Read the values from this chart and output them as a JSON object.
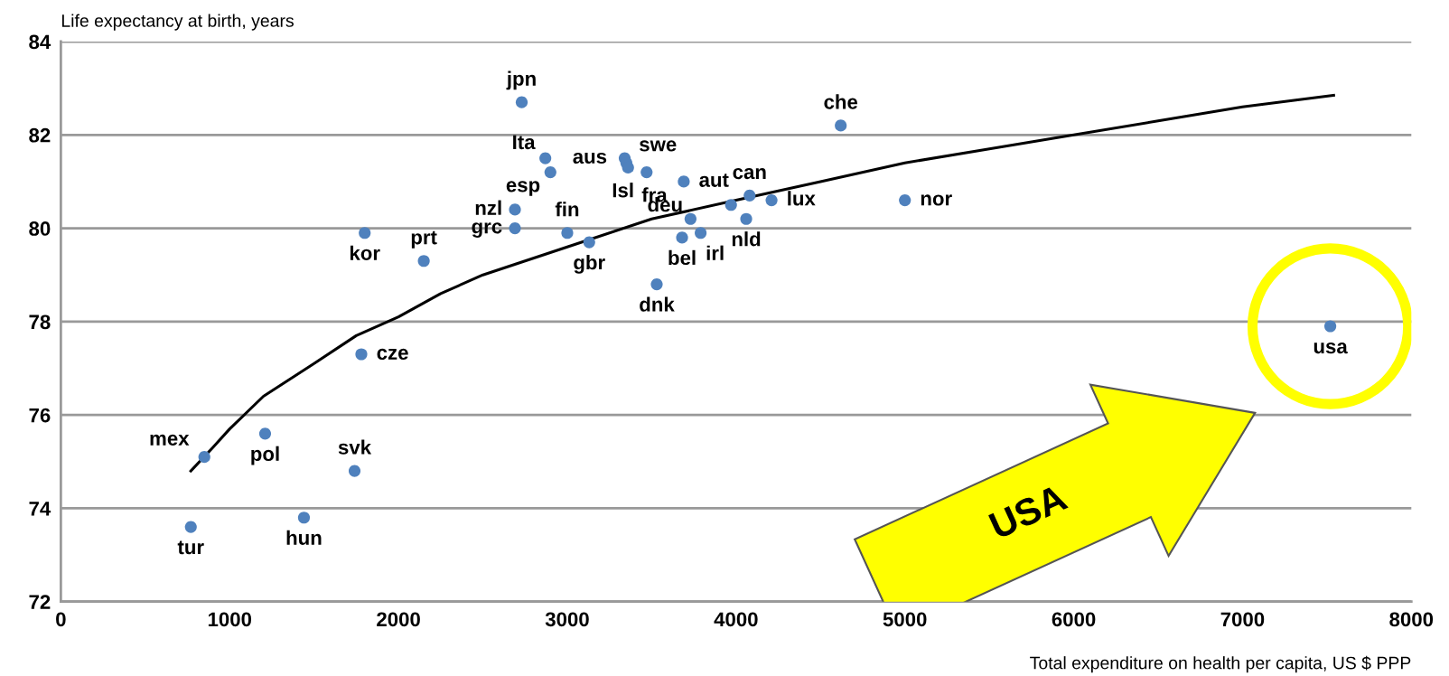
{
  "chart_data": {
    "type": "scatter",
    "ylabel": "Life expectancy at birth, years",
    "xlabel": "Total expenditure on health per capita, US $ PPP",
    "xlim": [
      0,
      8000
    ],
    "xticks": [
      0,
      1000,
      2000,
      3000,
      4000,
      5000,
      6000,
      7000,
      8000
    ],
    "ylim": [
      72,
      84
    ],
    "yticks": [
      72,
      74,
      76,
      78,
      80,
      82,
      84
    ],
    "grid": "y",
    "legend": false,
    "series": [
      {
        "marker": "circle",
        "color": "#4f81bd",
        "x": [
          2730,
          2870,
          2900,
          3340,
          3350,
          3360,
          3470,
          3690,
          4080,
          4210,
          2690,
          2690,
          3000,
          3730,
          4060,
          3680,
          3790,
          3130,
          3530,
          4620,
          5000,
          7520,
          1800,
          2150,
          1780,
          850,
          1210,
          1740,
          770,
          1440,
          3970
        ],
        "values": [
          82.7,
          81.5,
          81.2,
          81.5,
          81.4,
          81.3,
          81.2,
          81.0,
          80.7,
          80.6,
          80.4,
          80.0,
          79.9,
          80.2,
          80.2,
          79.8,
          79.9,
          79.7,
          78.8,
          82.2,
          80.6,
          77.9,
          79.9,
          79.3,
          77.3,
          75.1,
          75.6,
          74.8,
          73.6,
          73.8,
          80.5
        ]
      },
      {
        "type": "line",
        "marker": "none",
        "color": "#000000",
        "x": [
          770,
          900,
          1000,
          1200,
          1500,
          1750,
          2000,
          2250,
          2500,
          2750,
          3000,
          3500,
          4000,
          4500,
          5000,
          5500,
          6000,
          6500,
          7000,
          7540
        ],
        "values": [
          74.8,
          75.3,
          75.7,
          76.4,
          77.1,
          77.7,
          78.1,
          78.6,
          79.0,
          79.3,
          79.6,
          80.2,
          80.6,
          81.0,
          81.4,
          81.7,
          82.0,
          82.3,
          82.6,
          82.85
        ]
      }
    ],
    "annotations": [
      {
        "text": "jpn",
        "x": 2730,
        "y": 82.7
      },
      {
        "text": "Ita",
        "x": 2870,
        "y": 81.5
      },
      {
        "text": "esp",
        "x": 2900,
        "y": 81.2
      },
      {
        "text": "aus",
        "x": 3340,
        "y": 81.5
      },
      {
        "text": "swe",
        "x": 3350,
        "y": 81.4
      },
      {
        "text": "Isl",
        "x": 3360,
        "y": 81.3
      },
      {
        "text": "fra",
        "x": 3470,
        "y": 81.2
      },
      {
        "text": "aut",
        "x": 3690,
        "y": 81.0
      },
      {
        "text": "can",
        "x": 4080,
        "y": 80.7
      },
      {
        "text": "lux",
        "x": 4210,
        "y": 80.6
      },
      {
        "text": "nzl",
        "x": 2690,
        "y": 80.4
      },
      {
        "text": "grc",
        "x": 2690,
        "y": 80.0
      },
      {
        "text": "fin",
        "x": 3000,
        "y": 79.9
      },
      {
        "text": "deu",
        "x": 3730,
        "y": 80.2
      },
      {
        "text": "nld",
        "x": 4060,
        "y": 80.2
      },
      {
        "text": "bel",
        "x": 3680,
        "y": 79.8
      },
      {
        "text": "irl",
        "x": 3790,
        "y": 79.9
      },
      {
        "text": "gbr",
        "x": 3130,
        "y": 79.7
      },
      {
        "text": "dnk",
        "x": 3530,
        "y": 78.8
      },
      {
        "text": "che",
        "x": 4620,
        "y": 82.2
      },
      {
        "text": "nor",
        "x": 5000,
        "y": 80.6
      },
      {
        "text": "usa",
        "x": 7520,
        "y": 77.9
      },
      {
        "text": "kor",
        "x": 1800,
        "y": 79.9
      },
      {
        "text": "prt",
        "x": 2150,
        "y": 79.3
      },
      {
        "text": "cze",
        "x": 1780,
        "y": 77.3
      },
      {
        "text": "mex",
        "x": 850,
        "y": 75.1
      },
      {
        "text": "pol",
        "x": 1210,
        "y": 75.6
      },
      {
        "text": "svk",
        "x": 1740,
        "y": 74.8
      },
      {
        "text": "tur",
        "x": 770,
        "y": 73.6
      },
      {
        "text": "hun",
        "x": 1440,
        "y": 73.8
      },
      "USA"
    ]
  }
}
